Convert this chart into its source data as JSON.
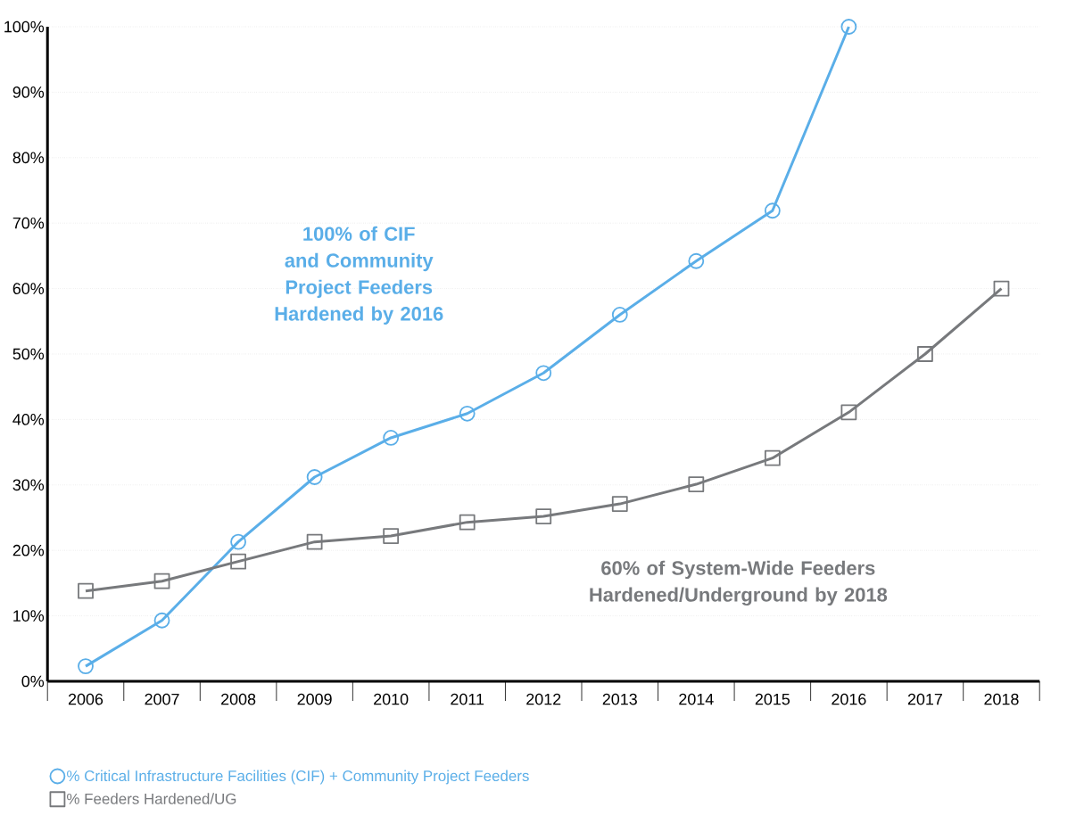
{
  "chart_data": {
    "type": "line",
    "categories": [
      "2006",
      "2007",
      "2008",
      "2009",
      "2010",
      "2011",
      "2012",
      "2013",
      "2014",
      "2015",
      "2016",
      "2017",
      "2018"
    ],
    "series": [
      {
        "name": "% Critical Infrastructure Facilities (CIF) + Community Project Feeders",
        "color": "#5aaee8",
        "marker": "circle",
        "values": [
          2.3,
          9.3,
          21.3,
          31.2,
          37.2,
          40.9,
          47.1,
          56,
          64.2,
          71.9,
          100,
          null,
          null
        ]
      },
      {
        "name": "% Feeders Hardened/UG",
        "color": "#77797c",
        "marker": "square",
        "values": [
          13.8,
          15.3,
          18.3,
          21.3,
          22.2,
          24.3,
          25.2,
          27.1,
          30.1,
          34.1,
          41.1,
          50,
          60
        ]
      }
    ],
    "ylim": [
      0,
      100
    ],
    "yticks": [
      {
        "value": 0,
        "label": "0%"
      },
      {
        "value": 10,
        "label": "10%"
      },
      {
        "value": 20,
        "label": "20%"
      },
      {
        "value": 30,
        "label": "30%"
      },
      {
        "value": 40,
        "label": "40%"
      },
      {
        "value": 50,
        "label": "50%"
      },
      {
        "value": 60,
        "label": "60%"
      },
      {
        "value": 70,
        "label": "70%"
      },
      {
        "value": 80,
        "label": "80%"
      },
      {
        "value": 90,
        "label": "90%"
      },
      {
        "value": 100,
        "label": "100%"
      }
    ],
    "grid": "y",
    "legend": "bottom left",
    "line_style": "solid",
    "annotations": [
      "100% of CIF and Community Project Feeders Hardened by 2016",
      "60% of System-Wide Feeders Hardened/Underground by 2018"
    ]
  }
}
